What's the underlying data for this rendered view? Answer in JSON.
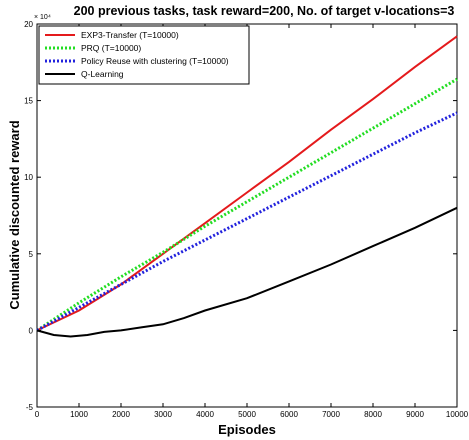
{
  "chart_data": {
    "type": "line",
    "title": "200 previous tasks, task reward=200, No. of target v-locations=3",
    "xlabel": "Episodes",
    "ylabel": "Cumulative discounted reward",
    "y_multiplier": "× 10⁴",
    "xlim": [
      0,
      10000
    ],
    "ylim": [
      -5,
      20
    ],
    "xticks": [
      0,
      1000,
      2000,
      3000,
      4000,
      5000,
      6000,
      7000,
      8000,
      9000,
      10000
    ],
    "yticks": [
      -5,
      0,
      5,
      10,
      15,
      20
    ],
    "grid": false,
    "legend_position": "top-left",
    "series": [
      {
        "name": "EXP3-Transfer (T=10000)",
        "color": "#e41a1c",
        "style": "solid",
        "x": [
          0,
          1000,
          2000,
          3000,
          4000,
          5000,
          6000,
          7000,
          8000,
          9000,
          10000
        ],
        "y": [
          0,
          1.3,
          3.0,
          5.0,
          7.0,
          9.0,
          11.0,
          13.1,
          15.1,
          17.2,
          19.2
        ]
      },
      {
        "name": "PRQ (T=10000)",
        "color": "#22dd22",
        "style": "dotted",
        "x": [
          0,
          1000,
          2000,
          3000,
          4000,
          5000,
          6000,
          7000,
          8000,
          9000,
          10000
        ],
        "y": [
          0,
          1.8,
          3.5,
          5.1,
          6.8,
          8.4,
          10.0,
          11.6,
          13.2,
          14.8,
          16.4
        ]
      },
      {
        "name": "Policy Reuse with clustering (T=10000)",
        "color": "#2222dd",
        "style": "dotted",
        "x": [
          0,
          1000,
          2000,
          3000,
          4000,
          5000,
          6000,
          7000,
          8000,
          9000,
          10000
        ],
        "y": [
          0,
          1.5,
          3.0,
          4.5,
          5.9,
          7.3,
          8.7,
          10.1,
          11.5,
          12.9,
          14.2
        ]
      },
      {
        "name": "Q-Learning",
        "color": "#000000",
        "style": "solid",
        "x": [
          0,
          400,
          800,
          1200,
          1600,
          2000,
          2500,
          3000,
          3500,
          4000,
          5000,
          6000,
          7000,
          8000,
          9000,
          10000
        ],
        "y": [
          0,
          -0.3,
          -0.4,
          -0.3,
          -0.1,
          0,
          0.2,
          0.4,
          0.8,
          1.3,
          2.1,
          3.2,
          4.3,
          5.5,
          6.7,
          8.0
        ]
      }
    ]
  }
}
